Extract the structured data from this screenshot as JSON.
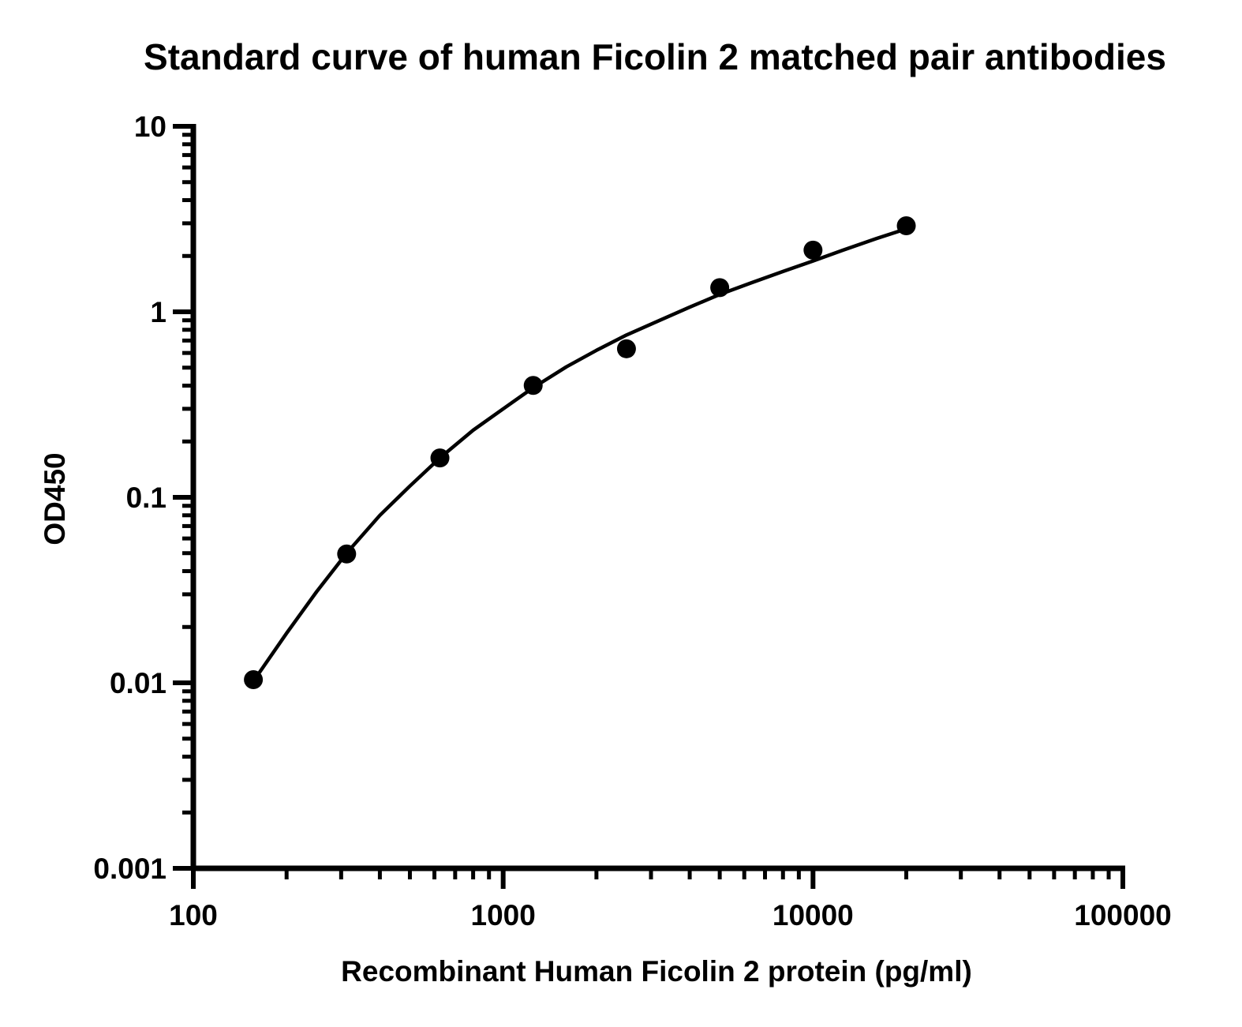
{
  "chart_data": {
    "type": "scatter",
    "title": "Standard curve of human Ficolin 2 matched pair antibodies",
    "xlabel": "Recombinant Human Ficolin 2 protein (pg/ml)",
    "ylabel": "OD450",
    "x_scale": "log",
    "y_scale": "log",
    "xlim": [
      100,
      100000
    ],
    "ylim": [
      0.001,
      10
    ],
    "x_ticks": [
      100,
      1000,
      10000,
      100000
    ],
    "x_tick_labels": [
      "100",
      "1000",
      "10000",
      "100000"
    ],
    "y_ticks": [
      0.001,
      0.01,
      0.1,
      1,
      10
    ],
    "y_tick_labels": [
      "0.001",
      "0.01",
      "0.1",
      "1",
      "10"
    ],
    "grid": false,
    "series": [
      {
        "points": [
          {
            "x": 156.25,
            "y": 0.0104
          },
          {
            "x": 312.5,
            "y": 0.0495
          },
          {
            "x": 625,
            "y": 0.163
          },
          {
            "x": 1250,
            "y": 0.401
          },
          {
            "x": 2500,
            "y": 0.632
          },
          {
            "x": 5000,
            "y": 1.35
          },
          {
            "x": 10000,
            "y": 2.15
          },
          {
            "x": 20000,
            "y": 2.91
          }
        ],
        "marker": "circle",
        "color": "#000000"
      }
    ],
    "fit_curve": {
      "x": [
        156.25,
        200,
        250,
        312.5,
        400,
        500,
        625,
        800,
        1000,
        1250,
        1600,
        2000,
        2500,
        3200,
        4000,
        5000,
        6300,
        8000,
        10000,
        12500,
        16000,
        20000
      ],
      "y": [
        0.0102,
        0.0185,
        0.031,
        0.05,
        0.08,
        0.115,
        0.163,
        0.23,
        0.3,
        0.39,
        0.505,
        0.62,
        0.75,
        0.9,
        1.06,
        1.24,
        1.43,
        1.65,
        1.88,
        2.15,
        2.48,
        2.8
      ],
      "color": "#000000"
    }
  }
}
